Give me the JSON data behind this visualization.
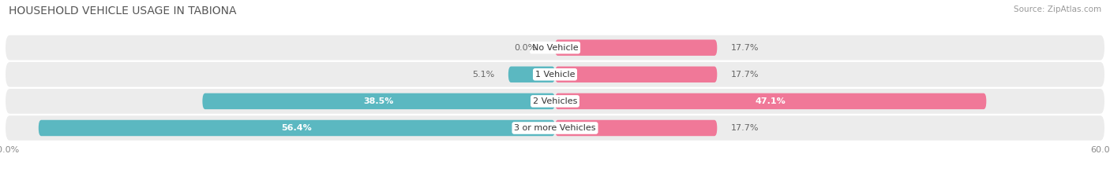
{
  "title": "HOUSEHOLD VEHICLE USAGE IN TABIONA",
  "source": "Source: ZipAtlas.com",
  "categories": [
    "No Vehicle",
    "1 Vehicle",
    "2 Vehicles",
    "3 or more Vehicles"
  ],
  "owner_values": [
    0.0,
    5.1,
    38.5,
    56.4
  ],
  "renter_values": [
    17.7,
    17.7,
    47.1,
    17.7
  ],
  "owner_color": "#5BB8C1",
  "renter_color": "#F07898",
  "bar_bg_color": "#ECECEC",
  "axis_limit": 60.0,
  "title_fontsize": 10,
  "source_fontsize": 7.5,
  "label_fontsize": 8,
  "tick_fontsize": 8,
  "legend_fontsize": 8,
  "background_color": "#FFFFFF",
  "bar_height": 0.6,
  "bar_spacing": 1.0
}
